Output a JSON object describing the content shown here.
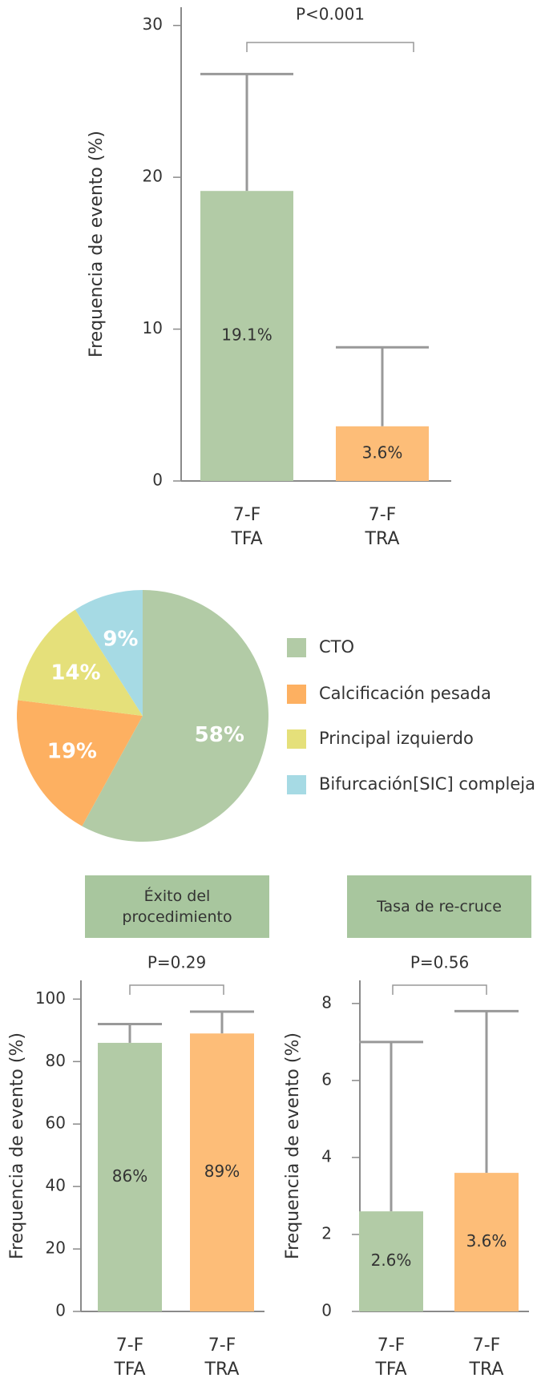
{
  "chart_data": [
    {
      "type": "bar",
      "categories": [
        "7-F\nTFA",
        "7-F\nTRA"
      ],
      "values": [
        19.1,
        3.6
      ],
      "value_labels": [
        "19.1%",
        "3.6%"
      ],
      "errors": [
        7.7,
        5.2
      ],
      "colors": [
        "#b2cba6",
        "#fdbd78"
      ],
      "ylabel": "Frequencia de evento (%)",
      "annotation": "P<0.001",
      "ylim": [
        0,
        31.2
      ],
      "yticks": [
        0,
        10,
        20,
        30
      ]
    },
    {
      "type": "pie",
      "categories": [
        "CTO",
        "Calcificación pesada",
        "Principal izquierdo",
        "Bifurcación[SIC] compleja"
      ],
      "values": [
        58,
        19,
        14,
        9
      ],
      "value_labels": [
        "58%",
        "19%",
        "14%",
        "9%"
      ],
      "colors": [
        "#b2cba6",
        "#fdb061",
        "#e5e07a",
        "#a6dae4"
      ],
      "legend": "right"
    },
    {
      "type": "bar",
      "title": "Éxito del procedimiento",
      "categories": [
        "7-F\nTFA",
        "7-F\nTRA"
      ],
      "values": [
        86,
        89
      ],
      "value_labels": [
        "86%",
        "89%"
      ],
      "errors": [
        6,
        7
      ],
      "colors": [
        "#b2cba6",
        "#fdbd78"
      ],
      "ylabel": "Frequencia de evento (%)",
      "annotation": "P=0.29",
      "ylim": [
        0,
        106
      ],
      "yticks": [
        0,
        20,
        40,
        60,
        80,
        100
      ]
    },
    {
      "type": "bar",
      "title": "Tasa de re-cruce",
      "categories": [
        "7-F\nTFA",
        "7-F\nTRA"
      ],
      "values": [
        2.6,
        3.6
      ],
      "value_labels": [
        "2.6%",
        "3.6%"
      ],
      "errors": [
        4.4,
        4.2
      ],
      "colors": [
        "#b2cba6",
        "#fdbd78"
      ],
      "ylabel": "Frequencia de evento (%)",
      "annotation": "P=0.56",
      "ylim": [
        0,
        8.6
      ],
      "yticks": [
        0,
        2,
        4,
        6,
        8
      ]
    }
  ]
}
